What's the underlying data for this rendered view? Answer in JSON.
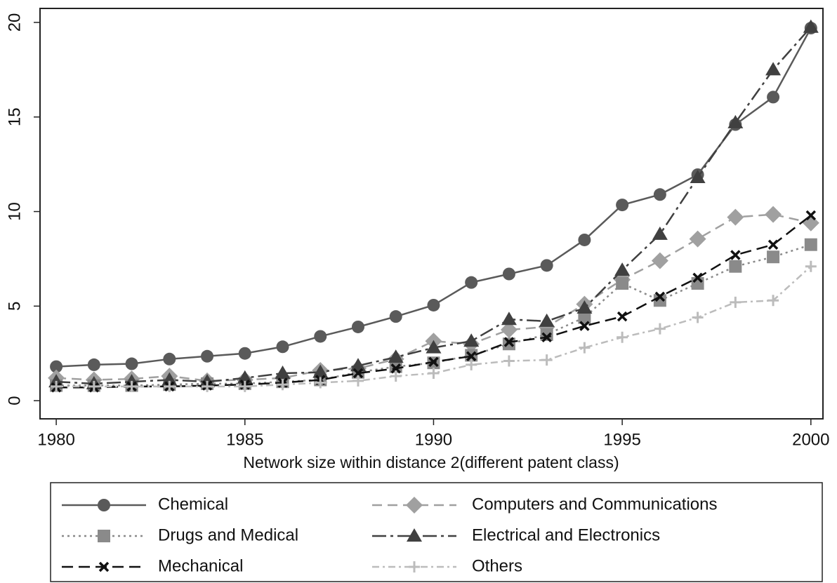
{
  "chart_data": {
    "type": "line",
    "x_label": "Network size within distance 2(different patent class)",
    "x": [
      1980,
      1981,
      1982,
      1983,
      1984,
      1985,
      1986,
      1987,
      1988,
      1989,
      1990,
      1991,
      1992,
      1993,
      1994,
      1995,
      1996,
      1997,
      1998,
      1999,
      2000
    ],
    "xlim": [
      1979.57,
      2000.32
    ],
    "xticks": [
      1980,
      1985,
      1990,
      1995,
      2000
    ],
    "ylim": [
      -0.96,
      20.74
    ],
    "yticks": [
      0,
      5,
      10,
      15,
      20
    ],
    "grid": false,
    "series": [
      {
        "name": "Chemical",
        "color": "#5a5a5a",
        "marker": "circle",
        "values": [
          1.8,
          1.9,
          1.95,
          2.2,
          2.35,
          2.5,
          2.85,
          3.4,
          3.9,
          4.45,
          5.05,
          6.25,
          6.7,
          7.15,
          8.5,
          10.35,
          10.9,
          11.95,
          14.6,
          16.05,
          19.7
        ]
      },
      {
        "name": "Computers and Communications",
        "color": "#a0a0a0",
        "marker": "diamond",
        "values": [
          1.2,
          1.1,
          1.15,
          1.3,
          1.05,
          1.1,
          1.2,
          1.6,
          1.7,
          2.2,
          3.15,
          3.0,
          3.75,
          3.9,
          5.1,
          6.4,
          7.4,
          8.55,
          9.7,
          9.85,
          9.4
        ]
      },
      {
        "name": "Drugs and Medical",
        "color": "#8a8a8a",
        "marker": "square",
        "values": [
          0.8,
          0.8,
          0.8,
          0.85,
          0.9,
          0.9,
          1.0,
          1.1,
          1.5,
          1.8,
          2.0,
          2.4,
          3.0,
          3.5,
          4.4,
          6.2,
          5.3,
          6.2,
          7.1,
          7.6,
          8.25
        ]
      },
      {
        "name": "Electrical and Electronics",
        "color": "#404040",
        "marker": "triangle",
        "values": [
          1.0,
          0.9,
          1.0,
          1.1,
          1.0,
          1.2,
          1.45,
          1.5,
          1.85,
          2.3,
          2.8,
          3.15,
          4.3,
          4.2,
          4.9,
          6.9,
          8.8,
          11.8,
          14.7,
          17.5,
          19.75
        ]
      },
      {
        "name": "Mechanical",
        "color": "#111111",
        "marker": "x",
        "values": [
          0.7,
          0.7,
          0.75,
          0.75,
          0.8,
          0.85,
          0.95,
          1.1,
          1.45,
          1.7,
          2.05,
          2.35,
          3.1,
          3.35,
          3.95,
          4.45,
          5.5,
          6.5,
          7.7,
          8.25,
          9.8
        ]
      },
      {
        "name": "Others",
        "color": "#bcbcbc",
        "marker": "plus",
        "values": [
          0.75,
          0.75,
          0.75,
          0.75,
          0.75,
          0.75,
          0.85,
          0.95,
          1.05,
          1.3,
          1.45,
          1.9,
          2.1,
          2.15,
          2.8,
          3.35,
          3.8,
          4.4,
          5.2,
          5.3,
          7.1
        ]
      }
    ]
  }
}
